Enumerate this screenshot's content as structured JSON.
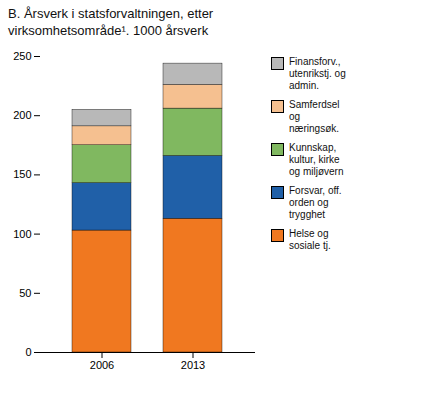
{
  "chart_data": {
    "type": "bar",
    "stacked": true,
    "title": "B.  Årsverk i statsforvaltningen, etter\nvirksomhetsområde¹. 1000 årsverk",
    "categories": [
      "2006",
      "2013"
    ],
    "series": [
      {
        "name": "Helse og\nsosiale tj.",
        "color": "#f07820",
        "values": [
          103,
          113
        ]
      },
      {
        "name": "Forsvar, off.\norden og\ntrygghet",
        "color": "#2060a8",
        "values": [
          40,
          53
        ]
      },
      {
        "name": "Kunnskap,\nkultur, kirke\nog miljøvern",
        "color": "#80b860",
        "values": [
          32,
          40
        ]
      },
      {
        "name": "Samferdsel\nog\nnæringsøk.",
        "color": "#f5c090",
        "values": [
          16,
          20
        ]
      },
      {
        "name": "Finansforv.,\nutenrikstj. og\nadmin.",
        "color": "#b8b8b8",
        "values": [
          14,
          18
        ]
      }
    ],
    "ylim": [
      0,
      250
    ],
    "yticks": [
      0,
      50,
      100,
      150,
      200,
      250
    ],
    "legend": "right",
    "grid": false
  }
}
